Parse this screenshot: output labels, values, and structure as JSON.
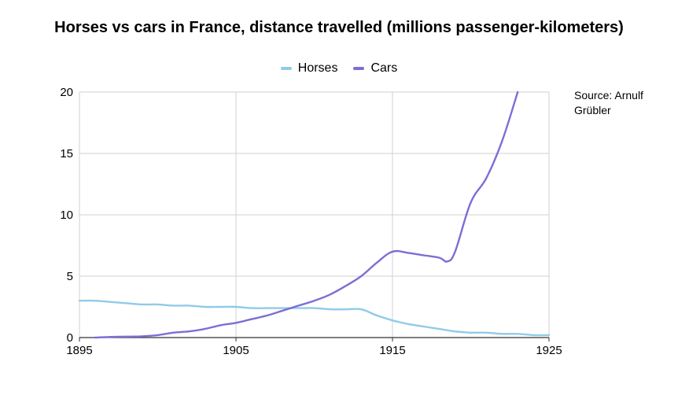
{
  "chart_data": {
    "type": "line",
    "title": "Horses vs cars in France, distance travelled (millions passenger-kilometers)",
    "xlabel": "",
    "ylabel": "",
    "xlim": [
      1895,
      1925
    ],
    "ylim": [
      0,
      20
    ],
    "x_ticks": [
      "1895",
      "1905",
      "1915",
      "1925"
    ],
    "y_ticks": [
      "0",
      "5",
      "10",
      "15",
      "20"
    ],
    "grid": true,
    "legend_position": "top",
    "series": [
      {
        "name": "Horses",
        "color": "#90cbe8",
        "points": [
          [
            1895,
            3.0
          ],
          [
            1896,
            3.0
          ],
          [
            1897,
            2.9
          ],
          [
            1898,
            2.8
          ],
          [
            1899,
            2.7
          ],
          [
            1900,
            2.7
          ],
          [
            1901,
            2.6
          ],
          [
            1902,
            2.6
          ],
          [
            1903,
            2.5
          ],
          [
            1904,
            2.5
          ],
          [
            1905,
            2.5
          ],
          [
            1906,
            2.4
          ],
          [
            1907,
            2.4
          ],
          [
            1908,
            2.4
          ],
          [
            1909,
            2.4
          ],
          [
            1910,
            2.4
          ],
          [
            1911,
            2.3
          ],
          [
            1912,
            2.3
          ],
          [
            1913,
            2.3
          ],
          [
            1914,
            1.8
          ],
          [
            1915,
            1.4
          ],
          [
            1916,
            1.1
          ],
          [
            1917,
            0.9
          ],
          [
            1918,
            0.7
          ],
          [
            1919,
            0.5
          ],
          [
            1920,
            0.4
          ],
          [
            1921,
            0.4
          ],
          [
            1922,
            0.3
          ],
          [
            1923,
            0.3
          ],
          [
            1924,
            0.2
          ],
          [
            1925,
            0.2
          ]
        ]
      },
      {
        "name": "Cars",
        "color": "#7b6fd4",
        "points": [
          [
            1896,
            0.0
          ],
          [
            1897,
            0.05
          ],
          [
            1898,
            0.08
          ],
          [
            1899,
            0.1
          ],
          [
            1900,
            0.2
          ],
          [
            1901,
            0.4
          ],
          [
            1902,
            0.5
          ],
          [
            1903,
            0.7
          ],
          [
            1904,
            1.0
          ],
          [
            1905,
            1.2
          ],
          [
            1906,
            1.5
          ],
          [
            1907,
            1.8
          ],
          [
            1908,
            2.2
          ],
          [
            1909,
            2.6
          ],
          [
            1910,
            3.0
          ],
          [
            1911,
            3.5
          ],
          [
            1912,
            4.2
          ],
          [
            1913,
            5.0
          ],
          [
            1914,
            6.1
          ],
          [
            1915,
            7.0
          ],
          [
            1916,
            6.9
          ],
          [
            1917,
            6.7
          ],
          [
            1918,
            6.5
          ],
          [
            1918.5,
            6.2
          ],
          [
            1919,
            7.0
          ],
          [
            1920,
            11.0
          ],
          [
            1921,
            13.0
          ],
          [
            1922,
            16.0
          ],
          [
            1923,
            20.0
          ]
        ]
      }
    ],
    "annotation": "Source: Arnulf Grübler"
  }
}
